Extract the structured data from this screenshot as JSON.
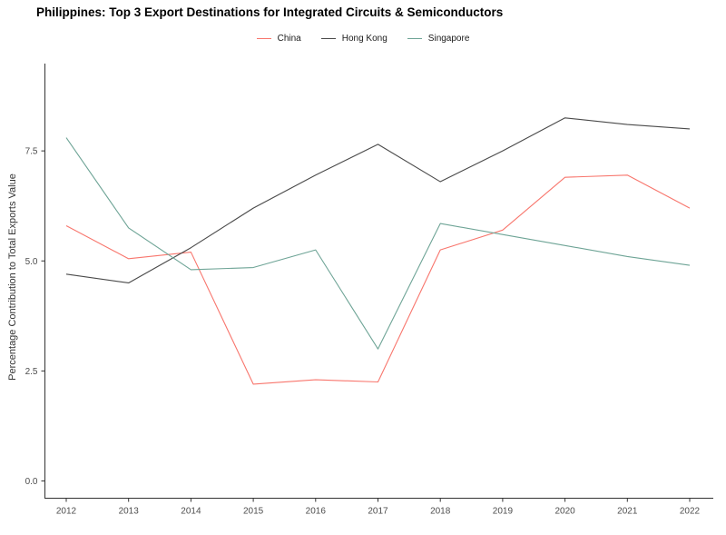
{
  "title": "Philippines: Top 3 Export Destinations for Integrated Circuits & Semiconductors",
  "chart_data": {
    "type": "line",
    "title": "Philippines: Top 3 Export Destinations for Integrated Circuits & Semiconductors",
    "x": [
      2012,
      2013,
      2014,
      2015,
      2016,
      2017,
      2018,
      2019,
      2020,
      2021,
      2022
    ],
    "series": [
      {
        "name": "China",
        "color": "#f8766d",
        "values": [
          5.8,
          5.05,
          5.2,
          2.2,
          2.3,
          2.25,
          5.25,
          5.7,
          6.9,
          6.95,
          6.2
        ]
      },
      {
        "name": "Hong Kong",
        "color": "#4a4a4a",
        "values": [
          4.7,
          4.5,
          5.3,
          6.2,
          6.95,
          7.65,
          6.8,
          7.5,
          8.25,
          8.1,
          8.0
        ]
      },
      {
        "name": "Singapore",
        "color": "#6ea496",
        "values": [
          7.8,
          5.75,
          4.8,
          4.85,
          5.25,
          3.0,
          5.85,
          5.6,
          5.35,
          5.1,
          4.9
        ]
      }
    ],
    "xlabel": "",
    "ylabel": "Percentage Contribution to Total Exports Value",
    "ytick_labels": [
      "0.0",
      "2.5",
      "5.0",
      "7.5"
    ],
    "ytick_values": [
      0,
      2.5,
      5,
      7.5
    ],
    "ylim": [
      -0.4,
      9.5
    ],
    "grid": false,
    "legend_position": "top"
  },
  "style": {
    "axis_color": "#333333",
    "tick_label_color": "#4d4d4d",
    "axis_title_color": "#333333"
  }
}
